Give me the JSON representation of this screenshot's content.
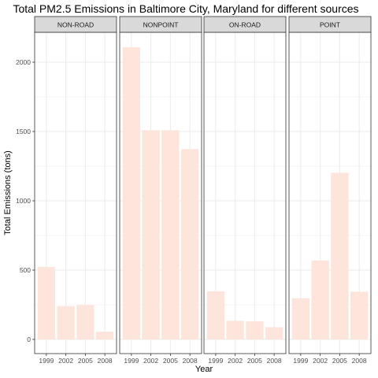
{
  "chart_data": {
    "type": "bar",
    "title": "Total PM2.5 Emissions in Baltimore City, Maryland for different sources",
    "xlabel": "Year",
    "ylabel": "Total Emissions (tons)",
    "ylim": [
      0,
      2200
    ],
    "yticks": [
      0,
      500,
      1000,
      1500,
      2000
    ],
    "categories": [
      "1999",
      "2002",
      "2005",
      "2008"
    ],
    "bar_color": "#fee5dc",
    "grid": true,
    "facets": [
      {
        "name": "NON-ROAD",
        "values": [
          522.94,
          240.85,
          248.93,
          55.82
        ]
      },
      {
        "name": "NONPOINT",
        "values": [
          2107.63,
          1509.5,
          1509.5,
          1373.21
        ]
      },
      {
        "name": "ON-ROAD",
        "values": [
          346.82,
          134.31,
          130.43,
          88.28
        ]
      },
      {
        "name": "POINT",
        "values": [
          296.8,
          569.26,
          1202.49,
          344.98
        ]
      }
    ]
  }
}
